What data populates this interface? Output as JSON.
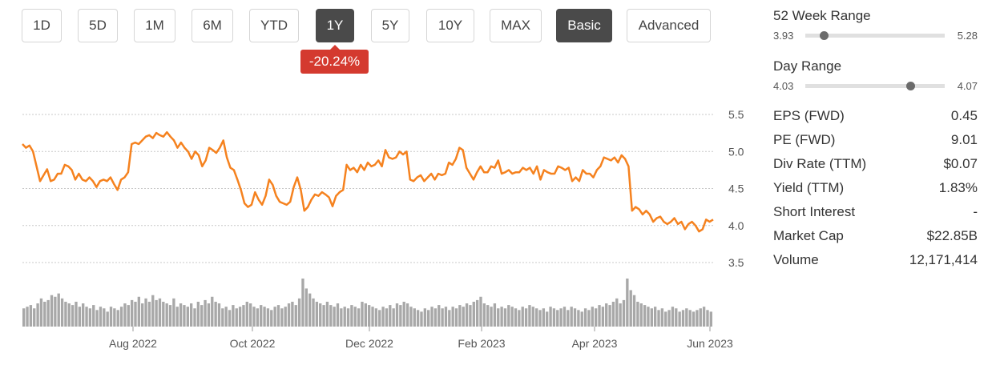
{
  "periods": [
    {
      "label": "1D",
      "active": false
    },
    {
      "label": "5D",
      "active": false
    },
    {
      "label": "1M",
      "active": false
    },
    {
      "label": "6M",
      "active": false
    },
    {
      "label": "YTD",
      "active": false
    },
    {
      "label": "1Y",
      "active": true
    },
    {
      "label": "5Y",
      "active": false
    },
    {
      "label": "10Y",
      "active": false
    },
    {
      "label": "MAX",
      "active": false
    }
  ],
  "modes": [
    {
      "label": "Basic",
      "active": true
    },
    {
      "label": "Advanced",
      "active": false
    }
  ],
  "change_badge": "-20.24%",
  "colors": {
    "line": "#f5821f",
    "volume": "#a8a8a8",
    "badge": "#d43a2f",
    "active_button": "#4a4a4a"
  },
  "stats": {
    "week52": {
      "title": "52 Week Range",
      "low": "3.93",
      "high": "5.28",
      "position": 0.13
    },
    "day": {
      "title": "Day Range",
      "low": "4.03",
      "high": "4.07",
      "position": 0.75
    },
    "rows": [
      {
        "label": "EPS (FWD)",
        "value": "0.45"
      },
      {
        "label": "PE (FWD)",
        "value": "9.01"
      },
      {
        "label": "Div Rate (TTM)",
        "value": "$0.07"
      },
      {
        "label": "Yield (TTM)",
        "value": "1.83%"
      },
      {
        "label": "Short Interest",
        "value": "-"
      },
      {
        "label": "Market Cap",
        "value": "$22.85B"
      },
      {
        "label": "Volume",
        "value": "12,171,414"
      }
    ]
  },
  "chart_data": {
    "type": "line",
    "ylim": [
      3.5,
      5.5
    ],
    "yticks": [
      "5.5",
      "5.0",
      "4.5",
      "4.0",
      "3.5"
    ],
    "xticks": [
      "Aug 2022",
      "Oct 2022",
      "Dec 2022",
      "Feb 2023",
      "Apr 2023",
      "Jun 2023"
    ],
    "grid": true,
    "series": [
      {
        "values": [
          5.1,
          5.05,
          5.08,
          5.0,
          4.8,
          4.6,
          4.68,
          4.76,
          4.6,
          4.62,
          4.7,
          4.7,
          4.82,
          4.8,
          4.75,
          4.62,
          4.7,
          4.62,
          4.6,
          4.65,
          4.6,
          4.52,
          4.6,
          4.62,
          4.6,
          4.65,
          4.56,
          4.48,
          4.62,
          4.65,
          4.72,
          5.1,
          5.12,
          5.1,
          5.15,
          5.2,
          5.22,
          5.18,
          5.25,
          5.22,
          5.2,
          5.26,
          5.2,
          5.15,
          5.05,
          5.12,
          5.05,
          5.0,
          4.9,
          5.0,
          4.95,
          4.8,
          4.88,
          5.05,
          5.02,
          4.98,
          5.05,
          5.15,
          4.92,
          4.78,
          4.75,
          4.62,
          4.48,
          4.3,
          4.25,
          4.28,
          4.45,
          4.35,
          4.28,
          4.4,
          4.62,
          4.55,
          4.4,
          4.32,
          4.3,
          4.28,
          4.32,
          4.52,
          4.65,
          4.48,
          4.2,
          4.25,
          4.35,
          4.42,
          4.4,
          4.45,
          4.42,
          4.38,
          4.26,
          4.4,
          4.45,
          4.48,
          4.82,
          4.75,
          4.78,
          4.72,
          4.82,
          4.75,
          4.85,
          4.8,
          4.82,
          4.88,
          4.8,
          5.02,
          4.92,
          4.9,
          4.92,
          5.0,
          4.96,
          5.0,
          4.62,
          4.6,
          4.65,
          4.68,
          4.6,
          4.65,
          4.7,
          4.62,
          4.7,
          4.68,
          4.7,
          4.85,
          4.82,
          4.9,
          5.05,
          5.02,
          4.78,
          4.7,
          4.62,
          4.72,
          4.8,
          4.72,
          4.72,
          4.8,
          4.78,
          4.88,
          4.7,
          4.72,
          4.75,
          4.7,
          4.72,
          4.72,
          4.78,
          4.75,
          4.78,
          4.7,
          4.8,
          4.62,
          4.75,
          4.72,
          4.7,
          4.7,
          4.8,
          4.78,
          4.75,
          4.78,
          4.6,
          4.65,
          4.6,
          4.75,
          4.7,
          4.7,
          4.65,
          4.75,
          4.8,
          4.92,
          4.9,
          4.88,
          4.92,
          4.85,
          4.95,
          4.9,
          4.8,
          4.2,
          4.25,
          4.22,
          4.15,
          4.2,
          4.15,
          4.05,
          4.1,
          4.12,
          4.05,
          4.02,
          4.05,
          4.1,
          4.02,
          4.05,
          3.95,
          4.02,
          4.05,
          4.0,
          3.92,
          3.95,
          4.08,
          4.05,
          4.08
        ]
      }
    ],
    "volume": [
      22,
      24,
      26,
      22,
      28,
      34,
      30,
      32,
      38,
      36,
      40,
      34,
      30,
      28,
      26,
      30,
      24,
      28,
      24,
      22,
      26,
      20,
      24,
      22,
      18,
      24,
      22,
      20,
      24,
      28,
      26,
      32,
      30,
      36,
      28,
      34,
      30,
      38,
      32,
      34,
      30,
      28,
      26,
      34,
      24,
      28,
      26,
      24,
      28,
      22,
      30,
      26,
      32,
      28,
      36,
      30,
      28,
      22,
      24,
      20,
      26,
      22,
      24,
      26,
      30,
      28,
      24,
      22,
      26,
      24,
      22,
      20,
      24,
      26,
      22,
      24,
      28,
      30,
      26,
      34,
      58,
      46,
      40,
      34,
      30,
      28,
      26,
      30,
      26,
      24,
      28,
      22,
      24,
      22,
      26,
      24,
      22,
      30,
      28,
      26,
      24,
      22,
      20,
      24,
      22,
      26,
      22,
      28,
      26,
      30,
      28,
      24,
      22,
      20,
      18,
      22,
      20,
      24,
      22,
      26,
      22,
      24,
      20,
      24,
      22,
      26,
      24,
      28,
      26,
      30,
      32,
      36,
      28,
      26,
      24,
      28,
      22,
      24,
      22,
      26,
      24,
      22,
      20,
      24,
      22,
      26,
      24,
      22,
      20,
      22,
      18,
      24,
      22,
      20,
      22,
      24,
      20,
      24,
      22,
      20,
      18,
      22,
      20,
      24,
      22,
      26,
      24,
      28,
      26,
      30,
      34,
      28,
      32,
      58,
      44,
      38,
      30,
      28,
      26,
      24,
      22,
      24,
      20,
      22,
      18,
      20,
      24,
      22,
      18,
      20,
      22,
      20,
      18,
      20,
      22,
      24,
      20,
      18
    ]
  }
}
